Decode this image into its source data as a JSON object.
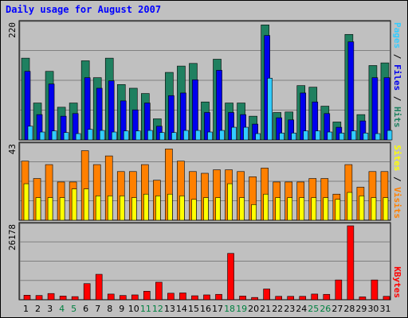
{
  "title": "Daily usage for August 2007",
  "colors": {
    "background": "#c0c0c0",
    "plot_bg": "#c0c0c0",
    "grid": "#808080",
    "title": "#0000ff",
    "weekday_label": "#000000",
    "weekend_label": "#008040",
    "hits": "#1f8060",
    "files": "#0000ee",
    "pages": "#33ccff",
    "visits": "#ff8000",
    "sites": "#ffff00",
    "kbytes": "#ff0000"
  },
  "chart_data": [
    {
      "type": "bar",
      "panel": "hits-files-pages",
      "ymax_label": "220",
      "ylim": [
        0,
        220
      ],
      "legend": {
        "pages": "Pages",
        "sep1": " / ",
        "files": "Files",
        "sep2": " / ",
        "hits": "Hits"
      },
      "categories": [
        "1",
        "2",
        "3",
        "4",
        "5",
        "6",
        "7",
        "8",
        "9",
        "10",
        "11",
        "12",
        "13",
        "14",
        "15",
        "16",
        "17",
        "18",
        "19",
        "20",
        "21",
        "22",
        "23",
        "24",
        "25",
        "26",
        "27",
        "28",
        "29",
        "30",
        "31"
      ],
      "weekend": [
        false,
        false,
        false,
        true,
        true,
        false,
        false,
        false,
        false,
        false,
        true,
        true,
        false,
        false,
        false,
        false,
        false,
        true,
        true,
        false,
        false,
        false,
        false,
        false,
        true,
        true,
        false,
        false,
        false,
        false,
        false
      ],
      "series": [
        {
          "name": "Hits",
          "values": [
            155,
            70,
            130,
            62,
            70,
            150,
            118,
            155,
            105,
            98,
            88,
            40,
            128,
            140,
            145,
            72,
            153,
            70,
            70,
            45,
            218,
            52,
            53,
            103,
            100,
            64,
            34,
            200,
            48,
            141,
            146
          ]
        },
        {
          "name": "Files",
          "values": [
            130,
            48,
            106,
            45,
            50,
            118,
            98,
            112,
            74,
            57,
            70,
            26,
            84,
            89,
            114,
            52,
            132,
            52,
            48,
            30,
            198,
            42,
            38,
            89,
            72,
            50,
            24,
            186,
            36,
            118,
            118
          ]
        },
        {
          "name": "Pages",
          "values": [
            26,
            15,
            17,
            14,
            12,
            20,
            18,
            15,
            17,
            17,
            18,
            14,
            14,
            18,
            18,
            15,
            18,
            24,
            24,
            12,
            117,
            13,
            13,
            17,
            17,
            15,
            13,
            17,
            13,
            12,
            18
          ]
        }
      ]
    },
    {
      "type": "bar",
      "panel": "visits-sites",
      "ymax_label": "43",
      "ylim": [
        0,
        43
      ],
      "legend": {
        "sites": "Sites",
        "sep1": " / ",
        "visits": "Visits"
      },
      "series": [
        {
          "name": "Visits",
          "values": [
            34,
            24,
            32,
            22,
            22,
            40,
            32,
            37,
            28,
            28,
            32,
            23,
            41,
            34,
            28,
            27,
            29,
            29,
            28,
            25,
            30,
            22,
            22,
            22,
            24,
            24,
            15,
            32,
            19,
            28,
            28
          ]
        },
        {
          "name": "Sites",
          "values": [
            21,
            13,
            13,
            13,
            18,
            18,
            14,
            14,
            14,
            13,
            15,
            14,
            15,
            14,
            12,
            13,
            13,
            21,
            13,
            9,
            15,
            13,
            13,
            13,
            13,
            13,
            12,
            16,
            14,
            13,
            13
          ]
        }
      ]
    },
    {
      "type": "bar",
      "panel": "kbytes",
      "ymax_label": "26178",
      "ylim": [
        0,
        26178
      ],
      "legend": {
        "kbytes": "KBytes"
      },
      "series": [
        {
          "name": "KBytes",
          "values": [
            1600,
            1500,
            2200,
            1300,
            1100,
            5700,
            9000,
            2000,
            1500,
            1700,
            3000,
            6200,
            2300,
            2400,
            1400,
            1700,
            1900,
            16400,
            1300,
            800,
            3800,
            1200,
            1200,
            1200,
            2000,
            1900,
            7000,
            26178,
            1000,
            7000,
            1200
          ]
        }
      ]
    }
  ]
}
